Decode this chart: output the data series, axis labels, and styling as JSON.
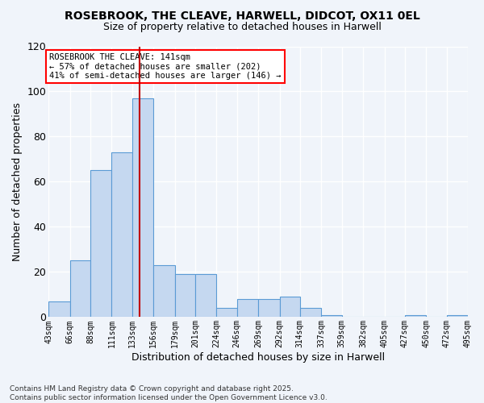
{
  "title": "ROSEBROOK, THE CLEAVE, HARWELL, DIDCOT, OX11 0EL",
  "subtitle": "Size of property relative to detached houses in Harwell",
  "xlabel": "Distribution of detached houses by size in Harwell",
  "ylabel": "Number of detached properties",
  "footer": "Contains HM Land Registry data © Crown copyright and database right 2025.\nContains public sector information licensed under the Open Government Licence v3.0.",
  "bar_color": "#c5d8f0",
  "bar_edge_color": "#5b9bd5",
  "background_color": "#f0f4fa",
  "grid_color": "#ffffff",
  "annotation_label": "ROSEBROOK THE CLEAVE: 141sqm",
  "annotation_line1": "← 57% of detached houses are smaller (202)",
  "annotation_line2": "41% of semi-detached houses are larger (146) →",
  "vline_x": 141,
  "vline_color": "#c00000",
  "bin_edges": [
    43,
    66,
    88,
    111,
    133,
    156,
    179,
    201,
    224,
    246,
    269,
    292,
    314,
    337,
    359,
    382,
    405,
    427,
    450,
    472,
    495
  ],
  "bar_heights": [
    7,
    25,
    65,
    73,
    97,
    23,
    19,
    19,
    4,
    8,
    8,
    9,
    4,
    1,
    0,
    0,
    0,
    1,
    0,
    1
  ],
  "ylim": [
    0,
    120
  ],
  "yticks": [
    0,
    20,
    40,
    60,
    80,
    100,
    120
  ]
}
